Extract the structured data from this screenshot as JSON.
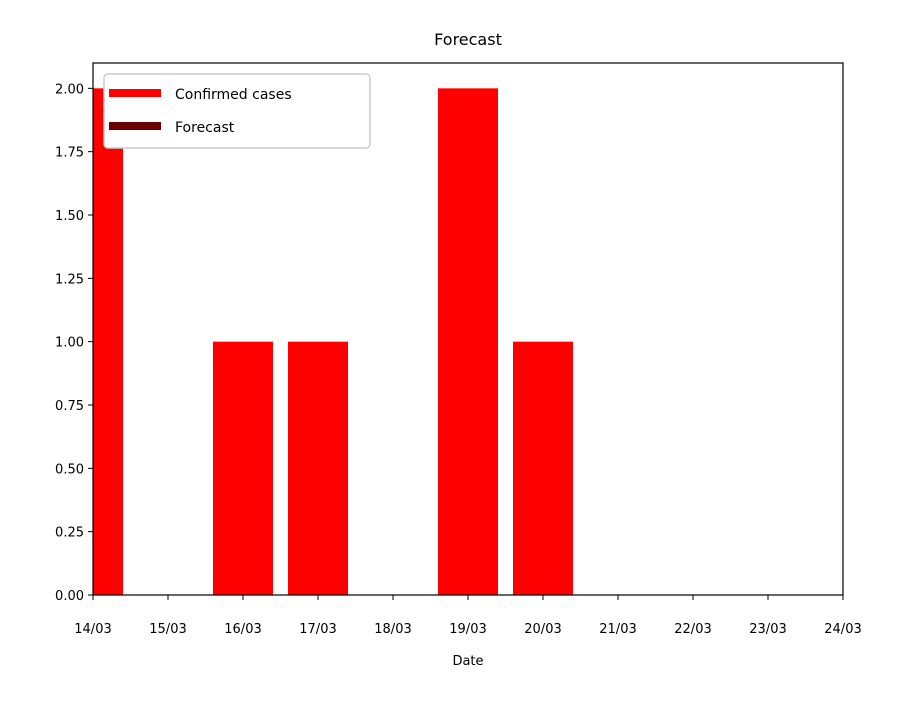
{
  "chart_data": {
    "type": "bar",
    "title": "Forecast",
    "xlabel": "Date",
    "ylabel": "",
    "categories": [
      "14/03",
      "15/03",
      "16/03",
      "17/03",
      "18/03",
      "19/03",
      "20/03",
      "21/03",
      "22/03",
      "23/03",
      "24/03"
    ],
    "series": [
      {
        "name": "Confirmed cases",
        "color": "#ff0000",
        "values": [
          2,
          0,
          1,
          1,
          0,
          2,
          1,
          null,
          null,
          null,
          null
        ]
      },
      {
        "name": "Forecast",
        "color": "#6b0000",
        "values": [
          null,
          null,
          null,
          null,
          null,
          null,
          null,
          null,
          null,
          null,
          null
        ]
      }
    ],
    "ylim": [
      0,
      2.1
    ],
    "yticks": [
      "0.00",
      "0.25",
      "0.50",
      "0.75",
      "1.00",
      "1.25",
      "1.50",
      "1.75",
      "2.00"
    ],
    "legend_position": "top-left",
    "grid": false
  }
}
